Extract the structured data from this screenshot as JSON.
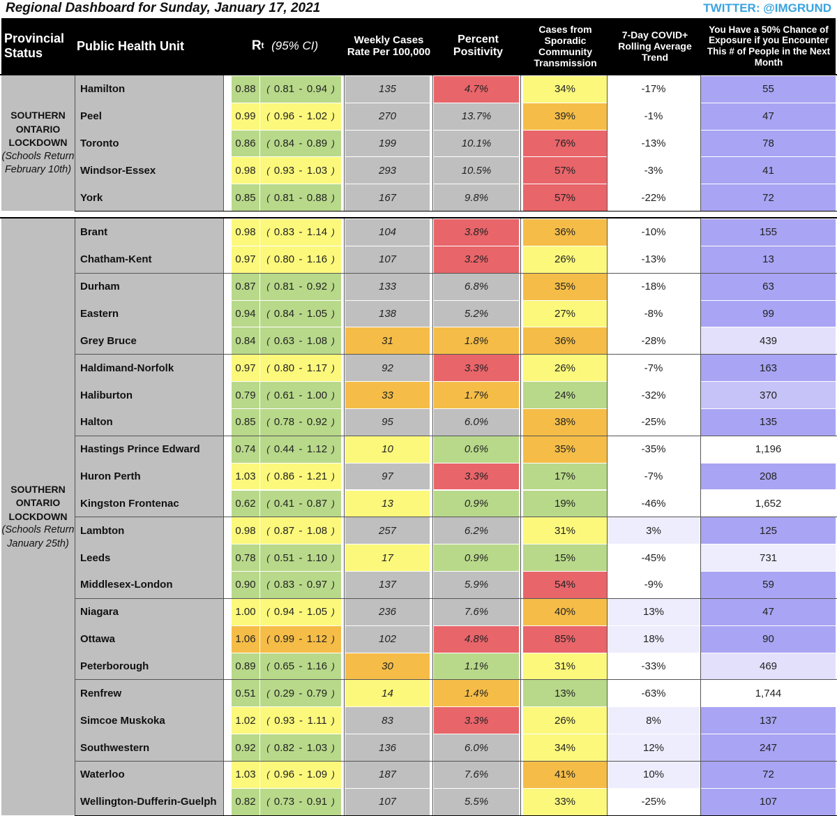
{
  "title": "Regional Dashboard for Sunday, January 17, 2021",
  "twitter": "TWITTER: @IMGRUND",
  "headers": {
    "status": "Provincial Status",
    "unit": "Public Health Unit",
    "rt_main": "R",
    "rt_sub": "t",
    "rt_ci": "(95% CI)",
    "weekly": "Weekly Cases Rate Per 100,000",
    "positivity": "Percent Positivity",
    "sporadic": "Cases from Sporadic Community Transmission",
    "trend": "7-Day COVID+ Rolling Average Trend",
    "exposure": "You Have a 50% Chance of Exposure if you Encounter This # of People in the Next Month"
  },
  "colors": {
    "green": "#b8d98a",
    "yellow": "#fbf87c",
    "orange": "#f5bd47",
    "red": "#e8656a",
    "gray": "#bfbfbf",
    "white": "#ffffff",
    "violet_strong": "#a9a4f3",
    "violet_mid": "#c6c3f8",
    "violet_light": "#e2e0fb",
    "violet_faint": "#eeedfd"
  },
  "groups": [
    {
      "status_main": "SOUTHERN ONTARIO LOCKDOWN",
      "status_sub": "(Schools Return February 10th)",
      "rows": [
        {
          "unit": "Hamilton",
          "rt": "0.88",
          "lo": "0.81",
          "hi": "0.94",
          "rc": "green",
          "weekly": "135",
          "wc": "gray",
          "pos": "4.7%",
          "pc": "red",
          "spor": "34%",
          "sc": "yellow",
          "trend": "-17%",
          "tc": "white",
          "exp": "55",
          "ec": "violet_strong"
        },
        {
          "unit": "Peel",
          "rt": "0.99",
          "lo": "0.96",
          "hi": "1.02",
          "rc": "yellow",
          "weekly": "270",
          "wc": "gray",
          "pos": "13.7%",
          "pc": "gray",
          "spor": "39%",
          "sc": "orange",
          "trend": "-1%",
          "tc": "white",
          "exp": "47",
          "ec": "violet_strong"
        },
        {
          "unit": "Toronto",
          "rt": "0.86",
          "lo": "0.84",
          "hi": "0.89",
          "rc": "green",
          "weekly": "199",
          "wc": "gray",
          "pos": "10.1%",
          "pc": "gray",
          "spor": "76%",
          "sc": "red",
          "trend": "-13%",
          "tc": "white",
          "exp": "78",
          "ec": "violet_strong"
        },
        {
          "unit": "Windsor-Essex",
          "rt": "0.98",
          "lo": "0.93",
          "hi": "1.03",
          "rc": "yellow",
          "weekly": "293",
          "wc": "gray",
          "pos": "10.5%",
          "pc": "gray",
          "spor": "57%",
          "sc": "red",
          "trend": "-3%",
          "tc": "white",
          "exp": "41",
          "ec": "violet_strong"
        },
        {
          "unit": "York",
          "rt": "0.85",
          "lo": "0.81",
          "hi": "0.88",
          "rc": "green",
          "weekly": "167",
          "wc": "gray",
          "pos": "9.8%",
          "pc": "gray",
          "spor": "57%",
          "sc": "red",
          "trend": "-22%",
          "tc": "white",
          "exp": "72",
          "ec": "violet_strong"
        }
      ]
    },
    {
      "status_main": "SOUTHERN ONTARIO LOCKDOWN",
      "status_sub": "(Schools Return January 25th)",
      "rows": [
        {
          "unit": "Brant",
          "rt": "0.98",
          "lo": "0.83",
          "hi": "1.14",
          "rc": "yellow",
          "weekly": "104",
          "wc": "gray",
          "pos": "3.8%",
          "pc": "red",
          "spor": "36%",
          "sc": "orange",
          "trend": "-10%",
          "tc": "white",
          "exp": "155",
          "ec": "violet_strong"
        },
        {
          "unit": "Chatham-Kent",
          "rt": "0.97",
          "lo": "0.80",
          "hi": "1.16",
          "rc": "yellow",
          "weekly": "107",
          "wc": "gray",
          "pos": "3.2%",
          "pc": "red",
          "spor": "26%",
          "sc": "yellow",
          "trend": "-13%",
          "tc": "white",
          "exp": "13",
          "ec": "violet_strong"
        },
        {
          "unit": "Durham",
          "rt": "0.87",
          "lo": "0.81",
          "hi": "0.92",
          "rc": "green",
          "weekly": "133",
          "wc": "gray",
          "pos": "6.8%",
          "pc": "gray",
          "spor": "35%",
          "sc": "orange",
          "trend": "-18%",
          "tc": "white",
          "exp": "63",
          "ec": "violet_strong"
        },
        {
          "unit": "Eastern",
          "rt": "0.94",
          "lo": "0.84",
          "hi": "1.05",
          "rc": "green",
          "weekly": "138",
          "wc": "gray",
          "pos": "5.2%",
          "pc": "gray",
          "spor": "27%",
          "sc": "yellow",
          "trend": "-8%",
          "tc": "white",
          "exp": "99",
          "ec": "violet_strong"
        },
        {
          "unit": "Grey Bruce",
          "rt": "0.84",
          "lo": "0.63",
          "hi": "1.08",
          "rc": "green",
          "weekly": "31",
          "wc": "orange",
          "pos": "1.8%",
          "pc": "orange",
          "spor": "36%",
          "sc": "orange",
          "trend": "-28%",
          "tc": "white",
          "exp": "439",
          "ec": "violet_light"
        },
        {
          "unit": "Haldimand-Norfolk",
          "rt": "0.97",
          "lo": "0.80",
          "hi": "1.17",
          "rc": "yellow",
          "weekly": "92",
          "wc": "gray",
          "pos": "3.3%",
          "pc": "red",
          "spor": "26%",
          "sc": "yellow",
          "trend": "-7%",
          "tc": "white",
          "exp": "163",
          "ec": "violet_strong"
        },
        {
          "unit": "Haliburton",
          "rt": "0.79",
          "lo": "0.61",
          "hi": "1.00",
          "rc": "green",
          "weekly": "33",
          "wc": "orange",
          "pos": "1.7%",
          "pc": "orange",
          "spor": "24%",
          "sc": "green",
          "trend": "-32%",
          "tc": "white",
          "exp": "370",
          "ec": "violet_mid"
        },
        {
          "unit": "Halton",
          "rt": "0.85",
          "lo": "0.78",
          "hi": "0.92",
          "rc": "green",
          "weekly": "95",
          "wc": "gray",
          "pos": "6.0%",
          "pc": "gray",
          "spor": "38%",
          "sc": "orange",
          "trend": "-25%",
          "tc": "white",
          "exp": "135",
          "ec": "violet_strong"
        },
        {
          "unit": "Hastings Prince Edward",
          "rt": "0.74",
          "lo": "0.44",
          "hi": "1.12",
          "rc": "green",
          "weekly": "10",
          "wc": "yellow",
          "pos": "0.6%",
          "pc": "green",
          "spor": "35%",
          "sc": "orange",
          "trend": "-35%",
          "tc": "white",
          "exp": "1,196",
          "ec": "white"
        },
        {
          "unit": "Huron Perth",
          "rt": "1.03",
          "lo": "0.86",
          "hi": "1.21",
          "rc": "yellow",
          "weekly": "97",
          "wc": "gray",
          "pos": "3.3%",
          "pc": "red",
          "spor": "17%",
          "sc": "green",
          "trend": "-7%",
          "tc": "white",
          "exp": "208",
          "ec": "violet_strong"
        },
        {
          "unit": "Kingston Frontenac",
          "rt": "0.62",
          "lo": "0.41",
          "hi": "0.87",
          "rc": "green",
          "weekly": "13",
          "wc": "yellow",
          "pos": "0.9%",
          "pc": "green",
          "spor": "19%",
          "sc": "green",
          "trend": "-46%",
          "tc": "white",
          "exp": "1,652",
          "ec": "white"
        },
        {
          "unit": "Lambton",
          "rt": "0.98",
          "lo": "0.87",
          "hi": "1.08",
          "rc": "yellow",
          "weekly": "257",
          "wc": "gray",
          "pos": "6.2%",
          "pc": "gray",
          "spor": "31%",
          "sc": "yellow",
          "trend": "3%",
          "tc": "violet_faint",
          "exp": "125",
          "ec": "violet_strong"
        },
        {
          "unit": "Leeds",
          "rt": "0.78",
          "lo": "0.51",
          "hi": "1.10",
          "rc": "green",
          "weekly": "17",
          "wc": "yellow",
          "pos": "0.9%",
          "pc": "green",
          "spor": "15%",
          "sc": "green",
          "trend": "-45%",
          "tc": "white",
          "exp": "731",
          "ec": "violet_faint"
        },
        {
          "unit": "Middlesex-London",
          "rt": "0.90",
          "lo": "0.83",
          "hi": "0.97",
          "rc": "green",
          "weekly": "137",
          "wc": "gray",
          "pos": "5.9%",
          "pc": "gray",
          "spor": "54%",
          "sc": "red",
          "trend": "-9%",
          "tc": "white",
          "exp": "59",
          "ec": "violet_strong"
        },
        {
          "unit": "Niagara",
          "rt": "1.00",
          "lo": "0.94",
          "hi": "1.05",
          "rc": "yellow",
          "weekly": "236",
          "wc": "gray",
          "pos": "7.6%",
          "pc": "gray",
          "spor": "40%",
          "sc": "orange",
          "trend": "13%",
          "tc": "violet_faint",
          "exp": "47",
          "ec": "violet_strong"
        },
        {
          "unit": "Ottawa",
          "rt": "1.06",
          "lo": "0.99",
          "hi": "1.12",
          "rc": "orange",
          "weekly": "102",
          "wc": "gray",
          "pos": "4.8%",
          "pc": "red",
          "spor": "85%",
          "sc": "red",
          "trend": "18%",
          "tc": "violet_faint",
          "exp": "90",
          "ec": "violet_strong"
        },
        {
          "unit": "Peterborough",
          "rt": "0.89",
          "lo": "0.65",
          "hi": "1.16",
          "rc": "green",
          "weekly": "30",
          "wc": "orange",
          "pos": "1.1%",
          "pc": "green",
          "spor": "31%",
          "sc": "yellow",
          "trend": "-33%",
          "tc": "white",
          "exp": "469",
          "ec": "violet_light"
        },
        {
          "unit": "Renfrew",
          "rt": "0.51",
          "lo": "0.29",
          "hi": "0.79",
          "rc": "green",
          "weekly": "14",
          "wc": "yellow",
          "pos": "1.4%",
          "pc": "orange",
          "spor": "13%",
          "sc": "green",
          "trend": "-63%",
          "tc": "white",
          "exp": "1,744",
          "ec": "white"
        },
        {
          "unit": "Simcoe Muskoka",
          "rt": "1.02",
          "lo": "0.93",
          "hi": "1.11",
          "rc": "yellow",
          "weekly": "83",
          "wc": "gray",
          "pos": "3.3%",
          "pc": "red",
          "spor": "26%",
          "sc": "yellow",
          "trend": "8%",
          "tc": "violet_faint",
          "exp": "137",
          "ec": "violet_strong"
        },
        {
          "unit": "Southwestern",
          "rt": "0.92",
          "lo": "0.82",
          "hi": "1.03",
          "rc": "green",
          "weekly": "136",
          "wc": "gray",
          "pos": "6.0%",
          "pc": "gray",
          "spor": "34%",
          "sc": "yellow",
          "trend": "12%",
          "tc": "violet_faint",
          "exp": "247",
          "ec": "violet_strong"
        },
        {
          "unit": "Waterloo",
          "rt": "1.03",
          "lo": "0.96",
          "hi": "1.09",
          "rc": "yellow",
          "weekly": "187",
          "wc": "gray",
          "pos": "7.6%",
          "pc": "gray",
          "spor": "41%",
          "sc": "orange",
          "trend": "10%",
          "tc": "violet_faint",
          "exp": "72",
          "ec": "violet_strong"
        },
        {
          "unit": "Wellington-Dufferin-Guelph",
          "rt": "0.82",
          "lo": "0.73",
          "hi": "0.91",
          "rc": "green",
          "weekly": "107",
          "wc": "gray",
          "pos": "5.5%",
          "pc": "gray",
          "spor": "33%",
          "sc": "yellow",
          "trend": "-25%",
          "tc": "white",
          "exp": "107",
          "ec": "violet_strong"
        }
      ]
    }
  ]
}
